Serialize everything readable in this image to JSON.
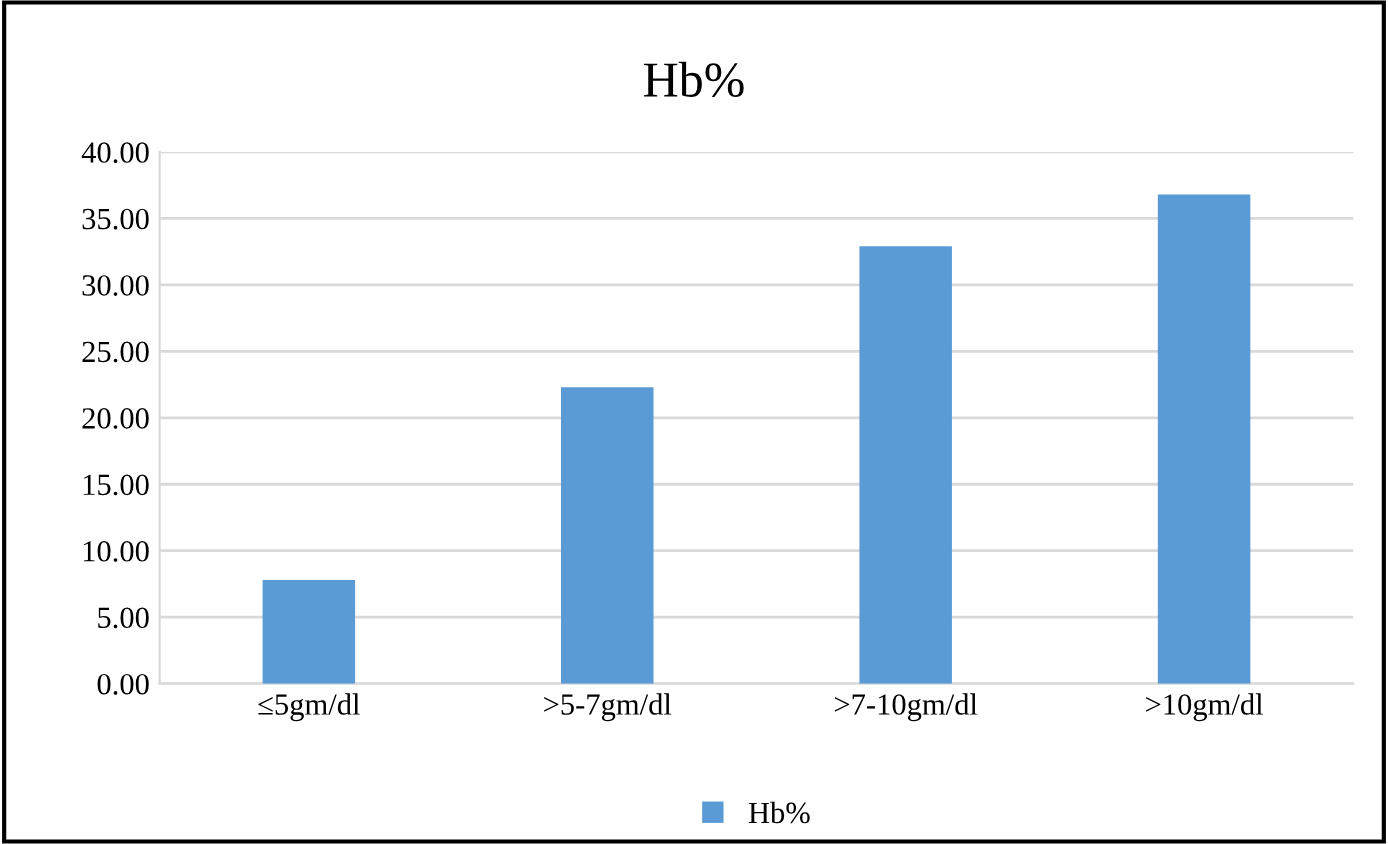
{
  "chart_data": {
    "type": "bar",
    "title": "Hb%",
    "categories": [
      "≤5gm/dl",
      ">5-7gm/dl",
      ">7-10gm/dl",
      ">10gm/dl"
    ],
    "series": [
      {
        "name": "Hb%",
        "color": "#5b9bd5",
        "values": [
          7.8,
          22.3,
          32.9,
          36.8
        ]
      }
    ],
    "ylim": [
      0,
      40
    ],
    "yticks": [
      {
        "value": 0,
        "label": "0.00"
      },
      {
        "value": 5,
        "label": "5.00"
      },
      {
        "value": 10,
        "label": "10.00"
      },
      {
        "value": 15,
        "label": "15.00"
      },
      {
        "value": 20,
        "label": "20.00"
      },
      {
        "value": 25,
        "label": "25.00"
      },
      {
        "value": 30,
        "label": "30.00"
      },
      {
        "value": 35,
        "label": "35.00"
      },
      {
        "value": 40,
        "label": "40.00"
      }
    ],
    "grid": "y",
    "legend": "bottom"
  }
}
